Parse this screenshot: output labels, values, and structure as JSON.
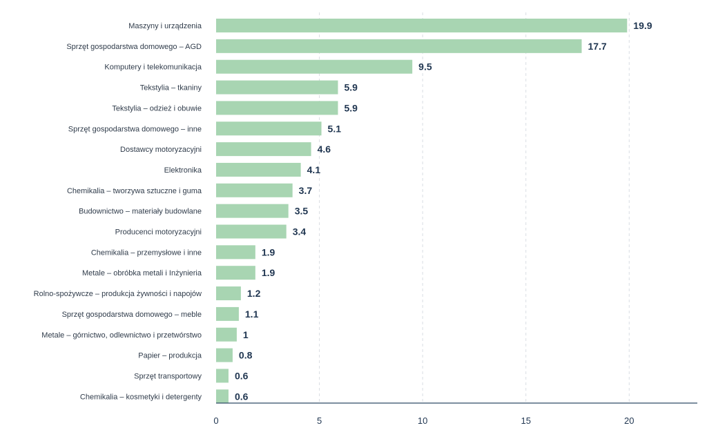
{
  "chart_data": {
    "type": "bar",
    "orientation": "horizontal",
    "categories": [
      "Maszyny i urządzenia",
      "Sprzęt gospodarstwa domowego – AGD",
      "Komputery i telekomunikacja",
      "Tekstylia – tkaniny",
      "Tekstylia – odzież i obuwie",
      "Sprzęt gospodarstwa domowego – inne",
      "Dostawcy motoryzacyjni",
      "Elektronika",
      "Chemikalia – tworzywa sztuczne i guma",
      "Budownictwo – materiały budowlane",
      "Producenci motoryzacyjni",
      "Chemikalia – przemysłowe i inne",
      "Metale – obróbka metali i Inżynieria",
      "Rolno-spożywcze – produkcja żywności i napojów",
      "Sprzęt gospodarstwa domowego – meble",
      "Metale – górnictwo, odlewnictwo i przetwórstwo",
      "Papier – produkcja",
      "Sprzęt transportowy",
      "Chemikalia – kosmetyki i detergenty"
    ],
    "values": [
      19.9,
      17.7,
      9.5,
      5.9,
      5.9,
      5.1,
      4.6,
      4.1,
      3.7,
      3.5,
      3.4,
      1.9,
      1.9,
      1.2,
      1.1,
      1,
      0.8,
      0.6,
      0.6
    ],
    "value_labels": [
      "19.9",
      "17.7",
      "9.5",
      "5.9",
      "5.9",
      "5.1",
      "4.6",
      "4.1",
      "3.7",
      "3.5",
      "3.4",
      "1.9",
      "1.9",
      "1.2",
      "1.1",
      "1",
      "0.8",
      "0.6",
      "0.6"
    ],
    "x_ticks": [
      0,
      5,
      10,
      15,
      20
    ],
    "xlim": [
      0,
      23.3
    ],
    "grid": true,
    "colors": {
      "bar": "#a8d5b2",
      "axis": "#2f4a66",
      "grid": "#d9dde3",
      "value_text": "#1f3550"
    }
  }
}
